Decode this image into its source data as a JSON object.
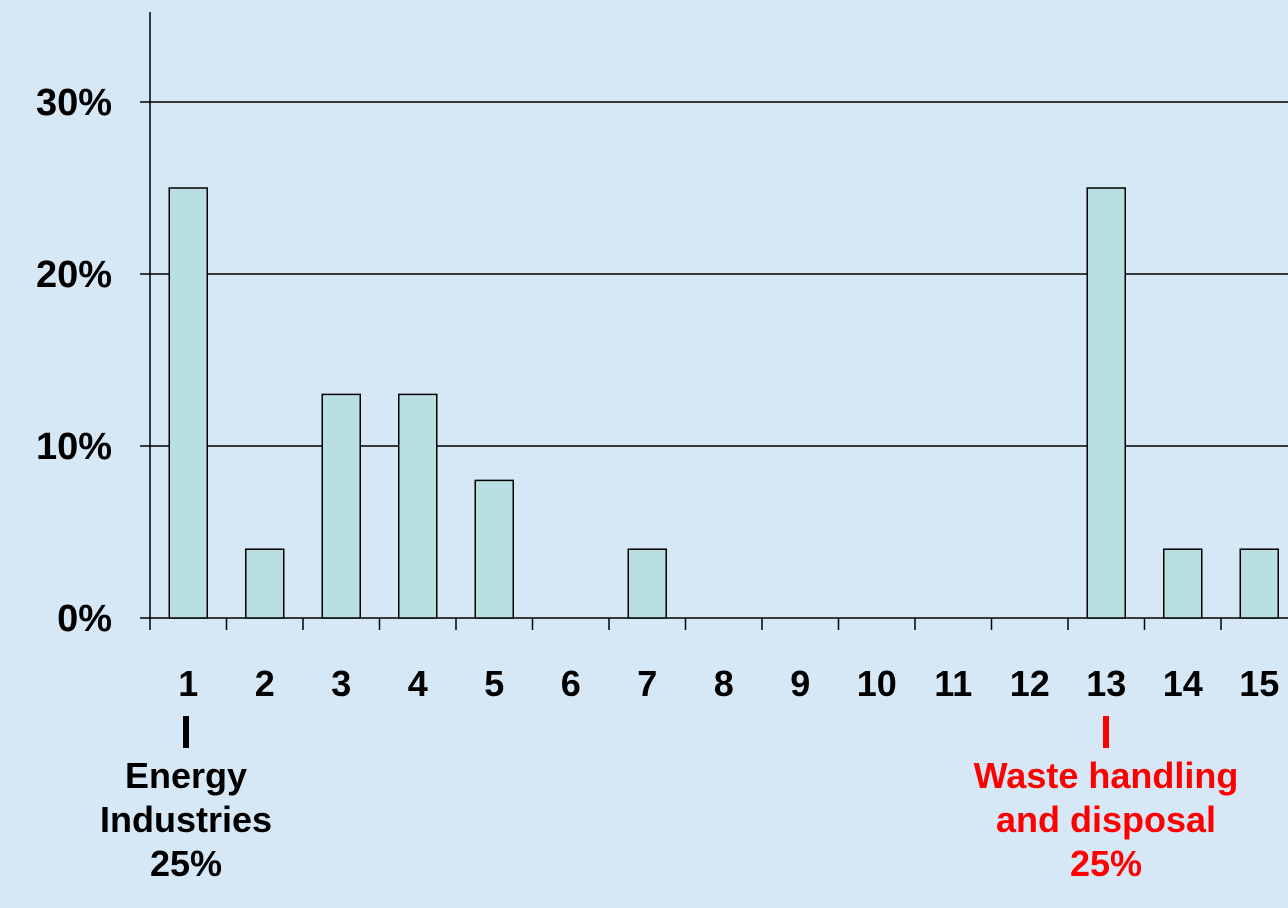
{
  "chart_data": {
    "type": "bar",
    "categories": [
      "1",
      "2",
      "3",
      "4",
      "5",
      "6",
      "7",
      "8",
      "9",
      "10",
      "11",
      "12",
      "13",
      "14",
      "15"
    ],
    "values": [
      25,
      4,
      13,
      13,
      8,
      0,
      4,
      0,
      0,
      0,
      0,
      0,
      25,
      4,
      4
    ],
    "yticks": [
      "0%",
      "10%",
      "20%",
      "30%"
    ],
    "ylim": [
      0,
      35
    ],
    "grid": true,
    "bar_color": "#b9dfe3",
    "background_color": "#d6e8f6",
    "annotations": [
      {
        "category": "1",
        "lines": [
          "Energy",
          "Industries",
          "25%"
        ],
        "color": "#000000"
      },
      {
        "category": "13",
        "lines": [
          "Waste handling",
          "and disposal",
          "25%"
        ],
        "color": "#ff0000"
      }
    ]
  }
}
